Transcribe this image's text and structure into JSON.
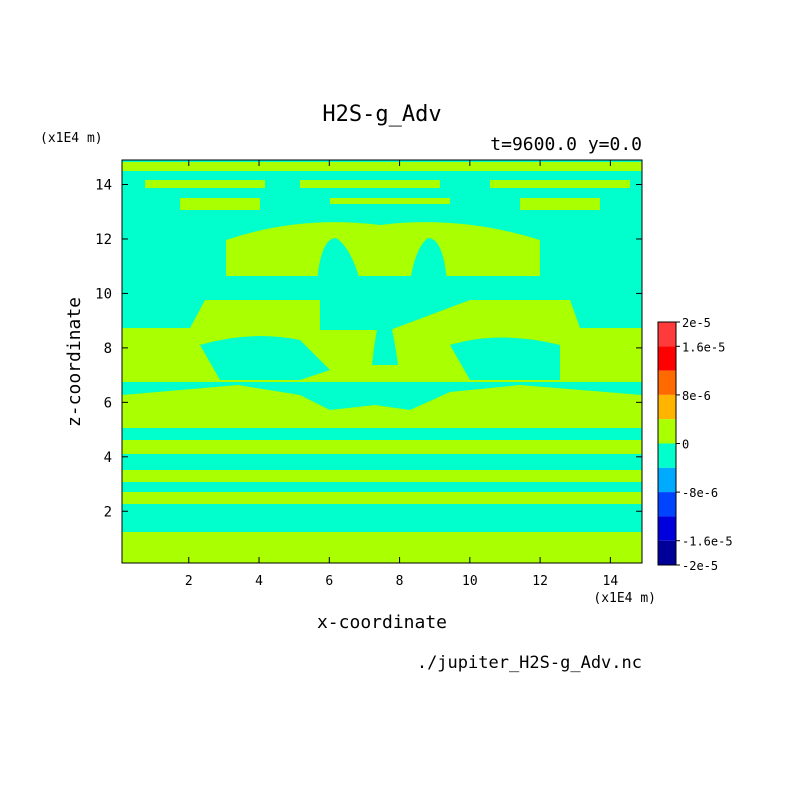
{
  "chart_data": {
    "type": "heatmap",
    "title": "H2S-g_Adv",
    "subtitle": "t=9600.0 y=0.0",
    "xlabel": "x-coordinate",
    "ylabel": "z-coordinate",
    "x_unit": "(x1E4 m)",
    "y_unit": "(x1E4 m)",
    "xlim": [
      0.1,
      14.9
    ],
    "ylim": [
      0.1,
      14.9
    ],
    "x_ticks": [
      2,
      4,
      6,
      8,
      10,
      12,
      14
    ],
    "y_ticks": [
      2,
      4,
      6,
      8,
      10,
      12,
      14
    ],
    "source_file": "./jupiter_H2S-g_Adv.nc",
    "colorbar": {
      "labels": [
        "2e-5",
        "1.6e-5",
        "8e-6",
        "0",
        "-8e-6",
        "-1.6e-5",
        "-2e-5"
      ],
      "colors": [
        "#ff3a3a",
        "#ff0000",
        "#ff6a00",
        "#ffb400",
        "#aaff00",
        "#00ffcc",
        "#00aaff",
        "#0044ff",
        "#0000dd",
        "#000099"
      ]
    },
    "field_colors": {
      "zero_to_positive": "#aaff00",
      "negative_to_zero": "#00ffcc"
    },
    "dominant_values": [
      "0",
      "-8e-6"
    ]
  }
}
